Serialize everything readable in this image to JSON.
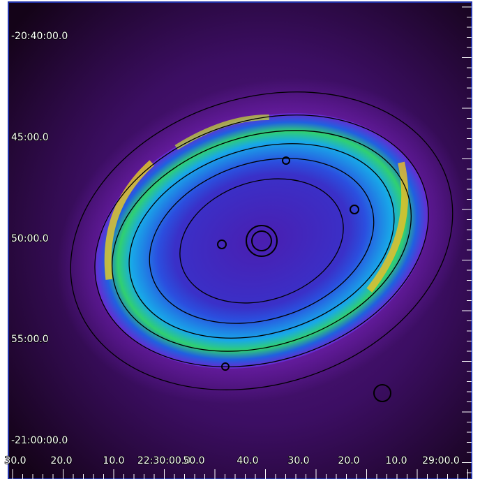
{
  "y_labels": [
    "-20:40:00.0",
    "45:00.0",
    "50:00.0",
    "55:00.0",
    "-21:00:00.0"
  ],
  "x_labels": [
    "30.0",
    "20.0",
    "10.0",
    "22:30:00.0",
    "50.0",
    "40.0",
    "30.0",
    "20.0",
    "10.0",
    "29:00.0"
  ]
}
